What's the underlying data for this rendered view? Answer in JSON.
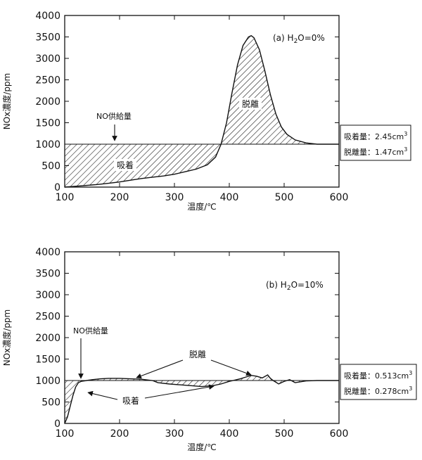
{
  "chart_data": [
    {
      "type": "area",
      "panel": "(a)",
      "condition": "H2O=0%",
      "xlabel": "温度/℃",
      "ylabel": "NOx濃度/ppm",
      "xlim": [
        100,
        600
      ],
      "ylim": [
        0,
        4000
      ],
      "xticks": [
        "100",
        "200",
        "300",
        "400",
        "500",
        "600"
      ],
      "yticks": [
        "0",
        "500",
        "1000",
        "1500",
        "2000",
        "2500",
        "3000",
        "3500",
        "4000"
      ],
      "supply_level": 1000,
      "series": [
        {
          "name": "NOx濃度",
          "x": [
            100,
            120,
            140,
            160,
            180,
            200,
            220,
            240,
            260,
            280,
            300,
            320,
            340,
            360,
            375,
            385,
            395,
            405,
            415,
            425,
            435,
            440,
            445,
            455,
            465,
            475,
            485,
            495,
            505,
            520,
            540,
            560,
            580,
            600
          ],
          "y": [
            0,
            20,
            40,
            60,
            90,
            120,
            160,
            200,
            230,
            260,
            300,
            360,
            420,
            520,
            700,
            1000,
            1500,
            2200,
            2850,
            3300,
            3500,
            3530,
            3480,
            3200,
            2700,
            2150,
            1700,
            1400,
            1230,
            1100,
            1030,
            1000,
            1000,
            1000
          ]
        }
      ],
      "annotations": {
        "supply_label": "NO供給量",
        "adsorption_label": "吸着",
        "desorption_label": "脱離",
        "adsorption_amount_label": "吸着量：",
        "adsorption_amount": "2.45cm",
        "desorption_amount_label": "脱離量：",
        "desorption_amount": "1.47cm",
        "unit_superscript": "3"
      }
    },
    {
      "type": "area",
      "panel": "(b)",
      "condition": "H2O=10%",
      "xlabel": "温度/℃",
      "ylabel": "NOx濃度/ppm",
      "xlim": [
        100,
        600
      ],
      "ylim": [
        0,
        4000
      ],
      "xticks": [
        "100",
        "200",
        "300",
        "400",
        "500",
        "600"
      ],
      "yticks": [
        "0",
        "500",
        "1000",
        "1500",
        "2000",
        "2500",
        "3000",
        "3500",
        "4000"
      ],
      "supply_level": 1000,
      "series": [
        {
          "name": "NOx濃度",
          "x": [
            100,
            105,
            110,
            115,
            120,
            125,
            130,
            140,
            150,
            165,
            180,
            200,
            220,
            240,
            260,
            270,
            290,
            310,
            330,
            350,
            370,
            385,
            400,
            410,
            420,
            430,
            440,
            450,
            460,
            470,
            475,
            480,
            490,
            500,
            510,
            520,
            540,
            560,
            580,
            600
          ],
          "y": [
            0,
            150,
            400,
            650,
            850,
            950,
            980,
            1000,
            1020,
            1040,
            1050,
            1050,
            1040,
            1030,
            1000,
            950,
            920,
            900,
            880,
            860,
            880,
            920,
            980,
            1010,
            1040,
            1080,
            1120,
            1100,
            1060,
            1130,
            1050,
            1000,
            920,
            980,
            1020,
            950,
            990,
            1000,
            1000,
            1000
          ]
        }
      ],
      "annotations": {
        "supply_label": "NO供給量",
        "adsorption_label": "吸着",
        "desorption_label": "脱離",
        "adsorption_amount_label": "吸着量：",
        "adsorption_amount": "0.513cm",
        "desorption_amount_label": "脱離量：",
        "desorption_amount": "0.278cm",
        "unit_superscript": "3"
      }
    }
  ]
}
